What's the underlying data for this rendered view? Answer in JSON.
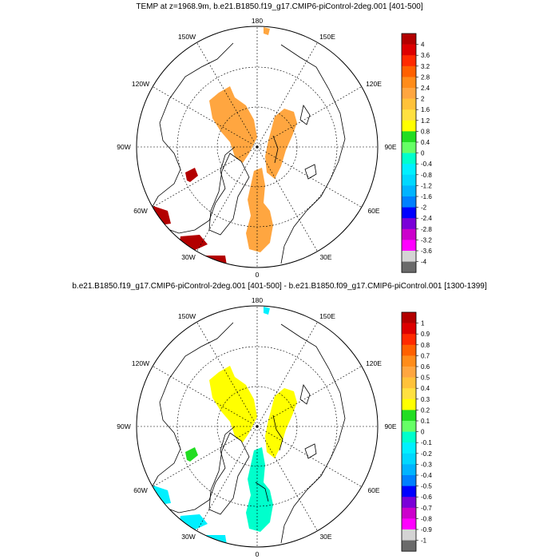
{
  "panels": [
    {
      "title": "TEMP at z=1968.9m, b.e21.B1850.f19_g17.CMIP6-piControl-2deg.001 [401-500]",
      "lon_labels": {
        "l180": "180",
        "l150W": "150W",
        "l150E": "150E",
        "l120W": "120W",
        "l120E": "120E",
        "l90W": "90W",
        "l90E": "90E",
        "l60W": "60W",
        "l60E": "60E",
        "l30W": "30W",
        "l30E": "30E",
        "l0": "0"
      },
      "colorbar": {
        "labels": [
          "4",
          "3.6",
          "3.2",
          "2.8",
          "2.4",
          "2",
          "1.6",
          "1.2",
          "0.8",
          "0.4",
          "0",
          "-0.4",
          "-0.8",
          "-1.2",
          "-1.6",
          "-2",
          "-2.4",
          "-2.8",
          "-3.2",
          "-3.6",
          "-4"
        ],
        "colors": [
          "#b30000",
          "#dd0000",
          "#ff2a00",
          "#ff6000",
          "#ff8c1a",
          "#ffa640",
          "#ffc23a",
          "#ffe040",
          "#ffff00",
          "#22dd22",
          "#66ff66",
          "#00ffcc",
          "#00f0ff",
          "#00d8ff",
          "#00b4ff",
          "#0080ff",
          "#0000ff",
          "#7a00d8",
          "#cc00cc",
          "#ff00ff",
          "#d4d4d4",
          "#6a6a6a"
        ]
      },
      "field": {
        "main_fill": "#ffa640",
        "main_value": 2.0,
        "atlantic_fill": "#ffa640",
        "atlantic_value": 2.0,
        "small_patch_fill": "#b30000",
        "small_patch_value": 4.0,
        "shelf_fill": "#b30000",
        "shelf_value": 4.0,
        "tiny_fill": "#ffa640"
      }
    },
    {
      "title": "b.e21.B1850.f19_g17.CMIP6-piControl-2deg.001 [401-500] - b.e21.B1850.f09_g17.CMIP6-piControl.001 [1300-1399]",
      "lon_labels": {
        "l180": "180",
        "l150W": "150W",
        "l150E": "150E",
        "l120W": "120W",
        "l120E": "120E",
        "l90W": "90W",
        "l90E": "90E",
        "l60W": "60W",
        "l60E": "60E",
        "l30W": "30W",
        "l30E": "30E",
        "l0": "0"
      },
      "colorbar": {
        "labels": [
          "1",
          "0.9",
          "0.8",
          "0.7",
          "0.6",
          "0.5",
          "0.4",
          "0.3",
          "0.2",
          "0.1",
          "0",
          "-0.1",
          "-0.2",
          "-0.3",
          "-0.4",
          "-0.5",
          "-0.6",
          "-0.7",
          "-0.8",
          "-0.9",
          "-1"
        ],
        "colors": [
          "#b30000",
          "#dd0000",
          "#ff2a00",
          "#ff6000",
          "#ff8c1a",
          "#ffa640",
          "#ffc23a",
          "#ffe040",
          "#ffff00",
          "#22dd22",
          "#66ff66",
          "#00ffcc",
          "#00f0ff",
          "#00d8ff",
          "#00b4ff",
          "#0080ff",
          "#0000ff",
          "#7a00d8",
          "#cc00cc",
          "#ff00ff",
          "#d4d4d4",
          "#6a6a6a"
        ]
      },
      "field": {
        "main_fill": "#ffff00",
        "main_value": 0.3,
        "atlantic_fill": "#00ffcc",
        "atlantic_value": -0.1,
        "small_patch_fill": "#22dd22",
        "small_patch_value": 0.1,
        "shelf_fill": "#00f0ff",
        "shelf_value": -0.2,
        "tiny_fill": "#00f0ff"
      }
    }
  ]
}
